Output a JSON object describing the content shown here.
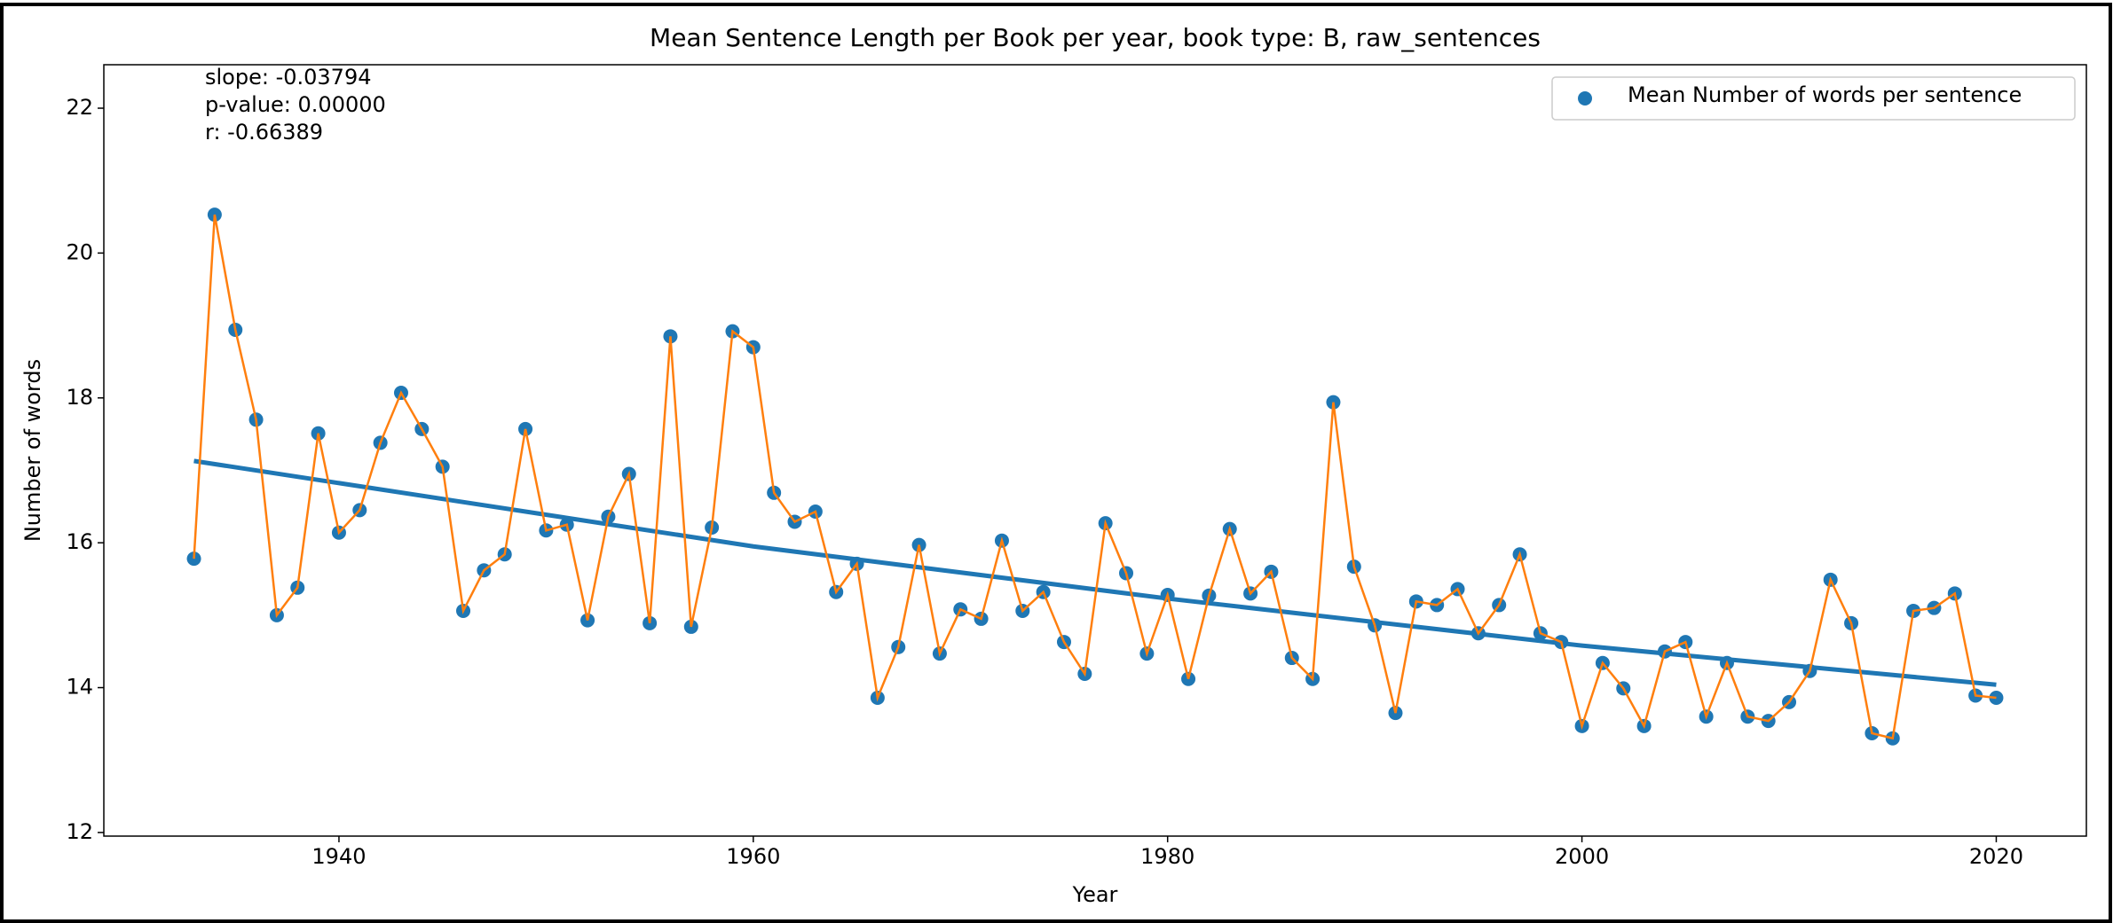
{
  "chart_data": {
    "type": "scatter",
    "title": "Mean Sentence Length per Book per year, book type: B, raw_sentences",
    "x_label": "Year",
    "y_label": "Number of words",
    "annotations": [
      "slope: -0.03794",
      "p-value: 0.00000",
      "r: -0.66389"
    ],
    "x": [
      1933,
      1934,
      1935,
      1936,
      1937,
      1938,
      1939,
      1940,
      1941,
      1942,
      1943,
      1944,
      1945,
      1946,
      1947,
      1948,
      1949,
      1950,
      1951,
      1952,
      1953,
      1954,
      1955,
      1956,
      1957,
      1958,
      1959,
      1960,
      1961,
      1962,
      1963,
      1964,
      1965,
      1966,
      1967,
      1968,
      1969,
      1970,
      1971,
      1972,
      1973,
      1974,
      1975,
      1976,
      1977,
      1978,
      1979,
      1980,
      1981,
      1982,
      1983,
      1984,
      1985,
      1986,
      1987,
      1988,
      1989,
      1990,
      1991,
      1992,
      1993,
      1994,
      1995,
      1996,
      1997,
      1998,
      1999,
      2000,
      2001,
      2002,
      2003,
      2004,
      2005,
      2006,
      2007,
      2008,
      2009,
      2010,
      2011,
      2012,
      2013,
      2014,
      2015,
      2016,
      2017,
      2018,
      2019,
      2020
    ],
    "series": [
      {
        "name": "Mean Number of words per sentence",
        "color": "#1f77b4",
        "values": [
          15.78,
          20.53,
          18.94,
          17.7,
          15.0,
          15.38,
          17.51,
          16.14,
          16.45,
          17.38,
          18.07,
          17.57,
          17.05,
          15.06,
          15.62,
          15.84,
          17.57,
          16.17,
          16.25,
          14.93,
          16.36,
          16.95,
          14.89,
          18.85,
          14.84,
          16.21,
          18.92,
          18.7,
          16.69,
          16.29,
          16.43,
          15.32,
          15.71,
          13.86,
          14.56,
          15.97,
          14.47,
          15.08,
          14.95,
          16.03,
          15.06,
          15.32,
          14.63,
          14.19,
          16.27,
          15.58,
          14.47,
          15.28,
          14.12,
          15.27,
          16.19,
          15.3,
          15.6,
          14.41,
          14.12,
          17.94,
          15.67,
          14.86,
          13.65,
          15.19,
          15.14,
          15.36,
          14.75,
          15.14,
          15.84,
          14.75,
          14.63,
          13.47,
          14.34,
          13.99,
          13.47,
          14.5,
          14.63,
          13.6,
          14.34,
          13.6,
          13.54,
          13.8,
          14.23,
          15.49,
          14.89,
          13.37,
          13.3,
          15.06,
          15.1,
          15.3,
          13.89,
          13.86
        ]
      }
    ],
    "line_color": "#ff7f0e",
    "trend": {
      "color": "#1f77b4",
      "x": [
        1933,
        1960,
        1980,
        2000,
        2020
      ],
      "values": [
        17.13,
        15.95,
        15.23,
        14.58,
        14.04
      ]
    },
    "xlim": [
      1928.65,
      2024.35
    ],
    "ylim": [
      11.95,
      22.6
    ],
    "xticks": [
      1940,
      1960,
      1980,
      2000,
      2020
    ],
    "yticks": [
      12,
      14,
      16,
      18,
      20,
      22
    ],
    "legend": "upper right"
  }
}
